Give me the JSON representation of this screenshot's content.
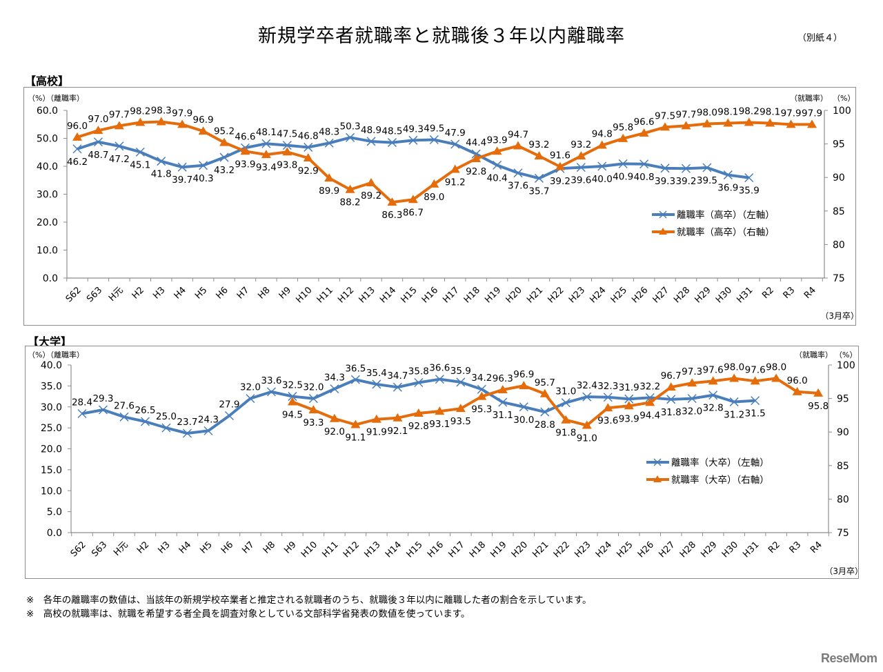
{
  "header": {
    "title": "新規学卒者就職率と就職後３年以内離職率",
    "annex": "（別紙４）"
  },
  "colors": {
    "separation": "#4a7ebb",
    "employment": "#e46c0a",
    "axis": "#8c8c8c"
  },
  "notes": [
    "※　各年の離職率の数値は、当該年の新規学校卒業者と推定される就職者のうち、就職後３年以内に離職した者の割合を示しています。",
    "※　高校の就職率は、就職を希望する者全員を調査対象としている文部科学省発表の数値を使っています。"
  ],
  "watermark": "ReseMom",
  "chart_data": [
    {
      "type": "line",
      "section_label": "【高校】",
      "title": "高校",
      "left_axis_label": "（%）（離職率）",
      "right_axis_label": "（就職率）",
      "right_axis_unit": "（%）",
      "x_note": "（3月卒）",
      "ylim_left": [
        0,
        60
      ],
      "yticks_left": [
        "0.0",
        "10.0",
        "20.0",
        "30.0",
        "40.0",
        "50.0",
        "60.0"
      ],
      "ylim_right": [
        75,
        100
      ],
      "yticks_right": [
        "75",
        "80",
        "85",
        "90",
        "95",
        "100"
      ],
      "grid": false,
      "legend_position": "center-right",
      "categories": [
        "S62",
        "S63",
        "H元",
        "H2",
        "H3",
        "H4",
        "H5",
        "H6",
        "H7",
        "H8",
        "H9",
        "H10",
        "H11",
        "H12",
        "H13",
        "H14",
        "H15",
        "H16",
        "H17",
        "H18",
        "H19",
        "H20",
        "H21",
        "H22",
        "H23",
        "H24",
        "H25",
        "H26",
        "H27",
        "H28",
        "H29",
        "H30",
        "H31",
        "R2",
        "R3",
        "R4"
      ],
      "series": [
        {
          "name": "離職率（高卒）（左軸）",
          "axis": "left",
          "marker": "x",
          "values": [
            46.2,
            48.7,
            47.2,
            45.1,
            41.8,
            39.7,
            40.3,
            43.2,
            46.6,
            48.1,
            47.5,
            46.8,
            48.3,
            50.3,
            48.9,
            48.5,
            49.3,
            49.5,
            47.9,
            44.4,
            40.4,
            37.6,
            35.7,
            39.2,
            39.6,
            40.0,
            40.9,
            40.8,
            39.3,
            39.2,
            39.5,
            36.9,
            35.9,
            null,
            null,
            null
          ]
        },
        {
          "name": "就職率（高卒）（右軸）",
          "axis": "right",
          "marker": "triangle",
          "values": [
            96.0,
            97.0,
            97.7,
            98.2,
            98.3,
            97.9,
            96.9,
            95.2,
            93.9,
            93.4,
            93.8,
            92.9,
            89.9,
            88.2,
            89.2,
            86.3,
            86.7,
            89.0,
            91.2,
            92.8,
            93.9,
            94.7,
            93.2,
            91.6,
            93.2,
            94.8,
            95.8,
            96.6,
            97.5,
            97.7,
            98.0,
            98.1,
            98.2,
            98.1,
            97.9,
            97.9
          ]
        }
      ]
    },
    {
      "type": "line",
      "section_label": "【大学】",
      "title": "大学",
      "left_axis_label": "（%）（離職率）",
      "right_axis_label": "（就職率）",
      "right_axis_unit": "（%）",
      "x_note": "（3月卒）",
      "ylim_left": [
        0,
        40
      ],
      "yticks_left": [
        "0.0",
        "5.0",
        "10.0",
        "15.0",
        "20.0",
        "25.0",
        "30.0",
        "35.0",
        "40.0"
      ],
      "ylim_right": [
        75,
        100
      ],
      "yticks_right": [
        "75",
        "80",
        "85",
        "90",
        "95",
        "100"
      ],
      "grid": false,
      "legend_position": "center-right",
      "categories": [
        "S62",
        "S63",
        "H元",
        "H2",
        "H3",
        "H4",
        "H5",
        "H6",
        "H7",
        "H8",
        "H9",
        "H10",
        "H11",
        "H12",
        "H13",
        "H14",
        "H15",
        "H16",
        "H17",
        "H18",
        "H19",
        "H20",
        "H21",
        "H22",
        "H23",
        "H24",
        "H25",
        "H26",
        "H27",
        "H28",
        "H29",
        "H30",
        "H31",
        "R2",
        "R3",
        "R4"
      ],
      "series": [
        {
          "name": "離職率（大卒）（左軸）",
          "axis": "left",
          "marker": "x",
          "values": [
            28.4,
            29.3,
            27.6,
            26.5,
            25.0,
            23.7,
            24.3,
            27.9,
            32.0,
            33.6,
            32.5,
            32.0,
            34.3,
            36.5,
            35.4,
            34.7,
            35.8,
            36.6,
            35.9,
            34.2,
            31.1,
            30.0,
            28.8,
            31.0,
            32.4,
            32.3,
            31.9,
            32.2,
            31.8,
            32.0,
            32.8,
            31.2,
            31.5,
            null,
            null,
            null
          ]
        },
        {
          "name": "就職率（大卒）（右軸）",
          "axis": "right",
          "marker": "triangle",
          "values": [
            null,
            null,
            null,
            null,
            null,
            null,
            null,
            null,
            null,
            null,
            94.5,
            93.3,
            92.0,
            91.1,
            91.9,
            92.1,
            92.8,
            93.1,
            93.5,
            95.3,
            96.3,
            96.9,
            95.7,
            91.8,
            91.0,
            93.6,
            93.9,
            94.4,
            96.7,
            97.3,
            97.6,
            98.0,
            97.6,
            98.0,
            96.0,
            95.8
          ]
        }
      ]
    }
  ]
}
